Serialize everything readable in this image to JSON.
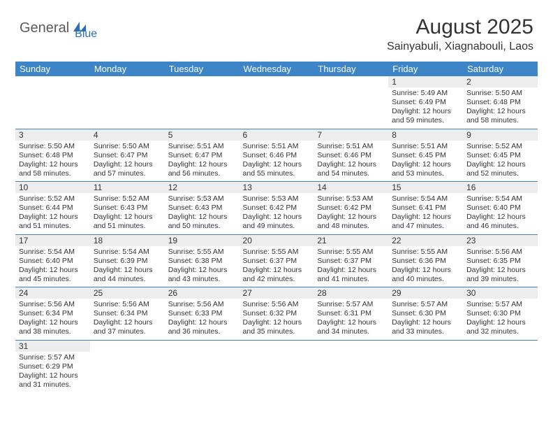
{
  "logo": {
    "part1": "General",
    "part2": "Blue"
  },
  "title": "August 2025",
  "location": "Sainyabuli, Xiagnabouli, Laos",
  "colors": {
    "header_bg": "#3d85c6",
    "header_text": "#ffffff",
    "daynum_bg": "#ededed",
    "border": "#3d85c6",
    "text": "#333333",
    "logo_gray": "#5a5a5a",
    "logo_blue": "#2a6db8"
  },
  "weekdays": [
    "Sunday",
    "Monday",
    "Tuesday",
    "Wednesday",
    "Thursday",
    "Friday",
    "Saturday"
  ],
  "weeks": [
    [
      null,
      null,
      null,
      null,
      null,
      {
        "n": "1",
        "sr": "5:49 AM",
        "ss": "6:49 PM",
        "dl": "12 hours and 59 minutes."
      },
      {
        "n": "2",
        "sr": "5:50 AM",
        "ss": "6:48 PM",
        "dl": "12 hours and 58 minutes."
      }
    ],
    [
      {
        "n": "3",
        "sr": "5:50 AM",
        "ss": "6:48 PM",
        "dl": "12 hours and 58 minutes."
      },
      {
        "n": "4",
        "sr": "5:50 AM",
        "ss": "6:47 PM",
        "dl": "12 hours and 57 minutes."
      },
      {
        "n": "5",
        "sr": "5:51 AM",
        "ss": "6:47 PM",
        "dl": "12 hours and 56 minutes."
      },
      {
        "n": "6",
        "sr": "5:51 AM",
        "ss": "6:46 PM",
        "dl": "12 hours and 55 minutes."
      },
      {
        "n": "7",
        "sr": "5:51 AM",
        "ss": "6:46 PM",
        "dl": "12 hours and 54 minutes."
      },
      {
        "n": "8",
        "sr": "5:51 AM",
        "ss": "6:45 PM",
        "dl": "12 hours and 53 minutes."
      },
      {
        "n": "9",
        "sr": "5:52 AM",
        "ss": "6:45 PM",
        "dl": "12 hours and 52 minutes."
      }
    ],
    [
      {
        "n": "10",
        "sr": "5:52 AM",
        "ss": "6:44 PM",
        "dl": "12 hours and 51 minutes."
      },
      {
        "n": "11",
        "sr": "5:52 AM",
        "ss": "6:43 PM",
        "dl": "12 hours and 51 minutes."
      },
      {
        "n": "12",
        "sr": "5:53 AM",
        "ss": "6:43 PM",
        "dl": "12 hours and 50 minutes."
      },
      {
        "n": "13",
        "sr": "5:53 AM",
        "ss": "6:42 PM",
        "dl": "12 hours and 49 minutes."
      },
      {
        "n": "14",
        "sr": "5:53 AM",
        "ss": "6:42 PM",
        "dl": "12 hours and 48 minutes."
      },
      {
        "n": "15",
        "sr": "5:54 AM",
        "ss": "6:41 PM",
        "dl": "12 hours and 47 minutes."
      },
      {
        "n": "16",
        "sr": "5:54 AM",
        "ss": "6:40 PM",
        "dl": "12 hours and 46 minutes."
      }
    ],
    [
      {
        "n": "17",
        "sr": "5:54 AM",
        "ss": "6:40 PM",
        "dl": "12 hours and 45 minutes."
      },
      {
        "n": "18",
        "sr": "5:54 AM",
        "ss": "6:39 PM",
        "dl": "12 hours and 44 minutes."
      },
      {
        "n": "19",
        "sr": "5:55 AM",
        "ss": "6:38 PM",
        "dl": "12 hours and 43 minutes."
      },
      {
        "n": "20",
        "sr": "5:55 AM",
        "ss": "6:37 PM",
        "dl": "12 hours and 42 minutes."
      },
      {
        "n": "21",
        "sr": "5:55 AM",
        "ss": "6:37 PM",
        "dl": "12 hours and 41 minutes."
      },
      {
        "n": "22",
        "sr": "5:55 AM",
        "ss": "6:36 PM",
        "dl": "12 hours and 40 minutes."
      },
      {
        "n": "23",
        "sr": "5:56 AM",
        "ss": "6:35 PM",
        "dl": "12 hours and 39 minutes."
      }
    ],
    [
      {
        "n": "24",
        "sr": "5:56 AM",
        "ss": "6:34 PM",
        "dl": "12 hours and 38 minutes."
      },
      {
        "n": "25",
        "sr": "5:56 AM",
        "ss": "6:34 PM",
        "dl": "12 hours and 37 minutes."
      },
      {
        "n": "26",
        "sr": "5:56 AM",
        "ss": "6:33 PM",
        "dl": "12 hours and 36 minutes."
      },
      {
        "n": "27",
        "sr": "5:56 AM",
        "ss": "6:32 PM",
        "dl": "12 hours and 35 minutes."
      },
      {
        "n": "28",
        "sr": "5:57 AM",
        "ss": "6:31 PM",
        "dl": "12 hours and 34 minutes."
      },
      {
        "n": "29",
        "sr": "5:57 AM",
        "ss": "6:30 PM",
        "dl": "12 hours and 33 minutes."
      },
      {
        "n": "30",
        "sr": "5:57 AM",
        "ss": "6:30 PM",
        "dl": "12 hours and 32 minutes."
      }
    ],
    [
      {
        "n": "31",
        "sr": "5:57 AM",
        "ss": "6:29 PM",
        "dl": "12 hours and 31 minutes."
      },
      null,
      null,
      null,
      null,
      null,
      null
    ]
  ],
  "labels": {
    "sunrise": "Sunrise:",
    "sunset": "Sunset:",
    "daylight": "Daylight:"
  }
}
